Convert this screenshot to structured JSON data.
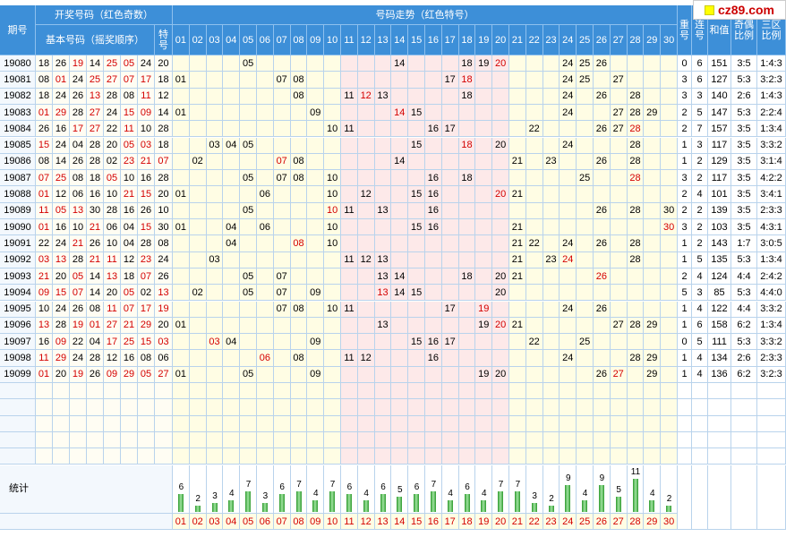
{
  "logo": "cz89.com",
  "header": {
    "period": "期号",
    "draw": "开奖号码（红色奇数）",
    "trend": "号码走势（红色特号）",
    "basic": "基本号码（摇奖顺序）",
    "special": "特号",
    "numbers": [
      "01",
      "02",
      "03",
      "04",
      "05",
      "06",
      "07",
      "08",
      "09",
      "10",
      "11",
      "12",
      "13",
      "14",
      "15",
      "16",
      "17",
      "18",
      "19",
      "20",
      "21",
      "22",
      "23",
      "24",
      "25",
      "26",
      "27",
      "28",
      "29",
      "30"
    ],
    "repeat": "重号",
    "consecutive": "连号",
    "sum": "和值",
    "odd_even": "奇偶比例",
    "zones": "三区比例"
  },
  "rows": [
    {
      "period": "19080",
      "basic": [
        "18",
        "26",
        "19",
        "14",
        "25",
        "05",
        "24"
      ],
      "special": "20",
      "repeat": 0,
      "consecutive": 6,
      "sum": 151,
      "odd_even": "3:5",
      "zones": "1:4:3"
    },
    {
      "period": "19081",
      "basic": [
        "08",
        "01",
        "24",
        "25",
        "27",
        "07",
        "17"
      ],
      "special": "18",
      "repeat": 3,
      "consecutive": 6,
      "sum": 127,
      "odd_even": "5:3",
      "zones": "3:2:3"
    },
    {
      "period": "19082",
      "basic": [
        "18",
        "24",
        "26",
        "13",
        "28",
        "08",
        "11"
      ],
      "special": "12",
      "repeat": 3,
      "consecutive": 3,
      "sum": 140,
      "odd_even": "2:6",
      "zones": "1:4:3"
    },
    {
      "period": "19083",
      "basic": [
        "01",
        "29",
        "28",
        "27",
        "24",
        "15",
        "09"
      ],
      "special": "14",
      "repeat": 2,
      "consecutive": 5,
      "sum": 147,
      "odd_even": "5:3",
      "zones": "2:2:4"
    },
    {
      "period": "19084",
      "basic": [
        "26",
        "16",
        "17",
        "27",
        "22",
        "11",
        "10"
      ],
      "special": "28",
      "repeat": 2,
      "consecutive": 7,
      "sum": 157,
      "odd_even": "3:5",
      "zones": "1:3:4"
    },
    {
      "period": "19085",
      "basic": [
        "15",
        "24",
        "04",
        "28",
        "20",
        "05",
        "03"
      ],
      "special": "18",
      "repeat": 1,
      "consecutive": 3,
      "sum": 117,
      "odd_even": "3:5",
      "zones": "3:3:2"
    },
    {
      "period": "19086",
      "basic": [
        "08",
        "14",
        "26",
        "28",
        "02",
        "23",
        "21"
      ],
      "special": "07",
      "repeat": 1,
      "consecutive": 2,
      "sum": 129,
      "odd_even": "3:5",
      "zones": "3:1:4"
    },
    {
      "period": "19087",
      "basic": [
        "07",
        "25",
        "08",
        "18",
        "05",
        "10",
        "16"
      ],
      "special": "28",
      "repeat": 3,
      "consecutive": 2,
      "sum": 117,
      "odd_even": "3:5",
      "zones": "4:2:2"
    },
    {
      "period": "19088",
      "basic": [
        "01",
        "12",
        "06",
        "16",
        "10",
        "21",
        "15"
      ],
      "special": "20",
      "repeat": 2,
      "consecutive": 4,
      "sum": 101,
      "odd_even": "3:5",
      "zones": "3:4:1"
    },
    {
      "period": "19089",
      "basic": [
        "11",
        "05",
        "13",
        "30",
        "28",
        "16",
        "26"
      ],
      "special": "10",
      "repeat": 2,
      "consecutive": 2,
      "sum": 139,
      "odd_even": "3:5",
      "zones": "2:3:3"
    },
    {
      "period": "19090",
      "basic": [
        "01",
        "16",
        "10",
        "21",
        "06",
        "04",
        "15"
      ],
      "special": "30",
      "repeat": 3,
      "consecutive": 2,
      "sum": 103,
      "odd_even": "3:5",
      "zones": "4:3:1"
    },
    {
      "period": "19091",
      "basic": [
        "22",
        "24",
        "21",
        "26",
        "10",
        "04",
        "28"
      ],
      "special": "08",
      "repeat": 1,
      "consecutive": 2,
      "sum": 143,
      "odd_even": "1:7",
      "zones": "3:0:5"
    },
    {
      "period": "19092",
      "basic": [
        "03",
        "13",
        "28",
        "21",
        "11",
        "12",
        "23"
      ],
      "special": "24",
      "repeat": 1,
      "consecutive": 5,
      "sum": 135,
      "odd_even": "5:3",
      "zones": "1:3:4"
    },
    {
      "period": "19093",
      "basic": [
        "21",
        "20",
        "05",
        "14",
        "13",
        "18",
        "07"
      ],
      "special": "26",
      "repeat": 2,
      "consecutive": 4,
      "sum": 124,
      "odd_even": "4:4",
      "zones": "2:4:2"
    },
    {
      "period": "19094",
      "basic": [
        "09",
        "15",
        "07",
        "14",
        "20",
        "05",
        "02"
      ],
      "special": "13",
      "repeat": 5,
      "consecutive": 3,
      "sum": 85,
      "odd_even": "5:3",
      "zones": "4:4:0"
    },
    {
      "period": "19095",
      "basic": [
        "10",
        "24",
        "26",
        "08",
        "11",
        "07",
        "17"
      ],
      "special": "19",
      "repeat": 1,
      "consecutive": 4,
      "sum": 122,
      "odd_even": "4:4",
      "zones": "3:3:2"
    },
    {
      "period": "19096",
      "basic": [
        "13",
        "28",
        "19",
        "01",
        "27",
        "21",
        "29"
      ],
      "special": "20",
      "repeat": 1,
      "consecutive": 6,
      "sum": 158,
      "odd_even": "6:2",
      "zones": "1:3:4"
    },
    {
      "period": "19097",
      "basic": [
        "16",
        "09",
        "22",
        "04",
        "17",
        "25",
        "15"
      ],
      "special": "03",
      "repeat": 0,
      "consecutive": 5,
      "sum": 111,
      "odd_even": "5:3",
      "zones": "3:3:2"
    },
    {
      "period": "19098",
      "basic": [
        "11",
        "29",
        "24",
        "28",
        "12",
        "16",
        "08"
      ],
      "special": "06",
      "repeat": 1,
      "consecutive": 4,
      "sum": 134,
      "odd_even": "2:6",
      "zones": "2:3:3"
    },
    {
      "period": "19099",
      "basic": [
        "01",
        "20",
        "19",
        "26",
        "09",
        "29",
        "05"
      ],
      "special": "27",
      "repeat": 1,
      "consecutive": 4,
      "sum": 136,
      "odd_even": "6:2",
      "zones": "3:2:3"
    }
  ],
  "stats": {
    "label": "统计",
    "counts": [
      6,
      2,
      3,
      4,
      7,
      3,
      6,
      7,
      4,
      7,
      6,
      4,
      6,
      5,
      6,
      7,
      4,
      6,
      4,
      7,
      7,
      3,
      2,
      9,
      4,
      9,
      5,
      11,
      4,
      2
    ]
  }
}
